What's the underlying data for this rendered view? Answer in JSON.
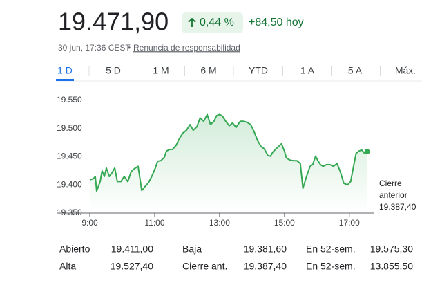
{
  "header": {
    "price": "19.471,90",
    "change_pct": "0,44 %",
    "change_abs": "+84,50 hoy",
    "timestamp": "30 jun, 17:36 CEST",
    "disclaimer": "Renuncia de responsabilidad"
  },
  "tabs": {
    "items": [
      "1 D",
      "5 D",
      "1 M",
      "6 M",
      "YTD",
      "1 A",
      "5 A",
      "Máx."
    ],
    "active": 0
  },
  "chart_data": {
    "type": "line",
    "x": [
      9.0,
      9.11,
      9.17,
      9.21,
      9.32,
      9.38,
      9.45,
      9.51,
      9.6,
      9.68,
      9.77,
      9.85,
      9.96,
      10.06,
      10.17,
      10.28,
      10.38,
      10.49,
      10.6,
      10.7,
      10.81,
      10.91,
      11.02,
      11.09,
      11.19,
      11.3,
      11.36,
      11.47,
      11.55,
      11.66,
      11.77,
      11.87,
      11.98,
      12.09,
      12.19,
      12.3,
      12.4,
      12.51,
      12.62,
      12.72,
      12.83,
      12.91,
      13.0,
      13.09,
      13.19,
      13.3,
      13.4,
      13.51,
      13.64,
      13.74,
      13.85,
      13.96,
      14.06,
      14.17,
      14.28,
      14.38,
      14.49,
      14.57,
      14.64,
      14.74,
      14.85,
      14.91,
      15.0,
      15.06,
      15.17,
      15.28,
      15.38,
      15.49,
      15.57,
      15.68,
      15.79,
      15.87,
      15.96,
      16.04,
      16.11,
      16.19,
      16.3,
      16.4,
      16.51,
      16.62,
      16.72,
      16.83,
      16.94,
      17.04,
      17.13,
      17.21,
      17.3,
      17.38,
      17.47,
      17.55
    ],
    "series": [
      {
        "color": "#34a853",
        "values": [
          19409,
          19411,
          19415,
          19389,
          19406,
          19425,
          19415,
          19430,
          19415,
          19421,
          19430,
          19406,
          19406,
          19415,
          19406,
          19424,
          19429,
          19433,
          19390,
          19397,
          19404,
          19415,
          19430,
          19442,
          19443,
          19449,
          19460,
          19463,
          19463,
          19470,
          19483,
          19492,
          19497,
          19507,
          19497,
          19503,
          19519,
          19513,
          19525,
          19507,
          19513,
          19523,
          19525,
          19522,
          19513,
          19505,
          19510,
          19502,
          19513,
          19513,
          19511,
          19507,
          19495,
          19479,
          19468,
          19464,
          19452,
          19451,
          19458,
          19464,
          19470,
          19473,
          19460,
          19448,
          19444,
          19443,
          19443,
          19438,
          19394,
          19415,
          19433,
          19436,
          19451,
          19442,
          19436,
          19433,
          19436,
          19436,
          19433,
          19438,
          19424,
          19403,
          19400,
          19406,
          19433,
          19456,
          19460,
          19462,
          19456,
          19459
        ]
      }
    ],
    "xlim": [
      9,
      17.75
    ],
    "ylim": [
      19350,
      19550
    ],
    "xticks": [
      {
        "value": 9,
        "label": "9:00"
      },
      {
        "value": 11,
        "label": "11:00"
      },
      {
        "value": 13,
        "label": "13:00"
      },
      {
        "value": 15,
        "label": "15:00"
      },
      {
        "value": 17,
        "label": "17:00"
      }
    ],
    "yticks": [
      {
        "value": 19350,
        "label": "19.350"
      },
      {
        "value": 19400,
        "label": "19.400"
      },
      {
        "value": 19450,
        "label": "19.450"
      },
      {
        "value": 19500,
        "label": "19.500"
      },
      {
        "value": 19550,
        "label": "19.550"
      }
    ],
    "grid": false,
    "end_marker": true,
    "reference_line": {
      "value": 19387.4,
      "label_lines": [
        "Cierre",
        "anterior"
      ],
      "value_label": "19.387,40"
    }
  },
  "stats": {
    "rows": [
      [
        "Abierto",
        "19.411,00",
        "Baja",
        "19.381,60",
        "En 52-sem.",
        "19.575,30"
      ],
      [
        "Alta",
        "19.527,40",
        "Cierre ant.",
        "19.387,40",
        "En 52-sem.",
        "13.855,50"
      ]
    ]
  }
}
